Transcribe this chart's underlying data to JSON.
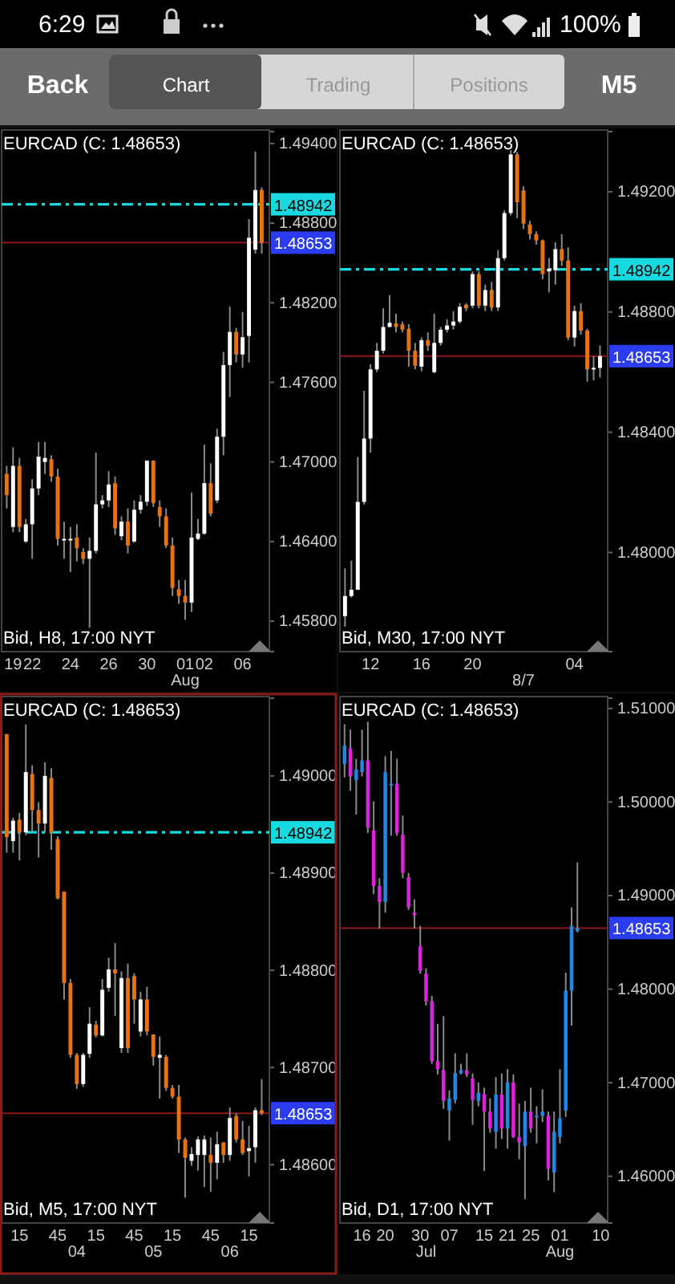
{
  "chart_data": [
    {
      "type": "other",
      "annotations": [
        "6:29",
        "100%",
        "Back",
        "Chart",
        "Trading",
        "Positions",
        "M5"
      ]
    },
    {
      "type": "candlestick",
      "title": "EURCAD (C: 1.48653)",
      "annotations": [
        "Bid, H8, 17:00 NYT"
      ],
      "categories": [
        null,
        "19",
        null,
        null,
        "22",
        null,
        null,
        null,
        null,
        null,
        "24",
        null,
        null,
        null,
        null,
        null,
        "26",
        null,
        null,
        null,
        null,
        null,
        "30",
        null,
        null,
        null,
        null,
        null,
        "01\nAug",
        null,
        null,
        "02",
        null,
        null,
        null,
        null,
        null,
        "06",
        null,
        null,
        null
      ],
      "ohlc": [
        [
          1.4691,
          1.4697,
          1.4665,
          1.4675
        ],
        [
          1.4651,
          1.4711,
          1.4647,
          1.4697
        ],
        [
          1.4697,
          1.4703,
          1.4647,
          1.4651
        ],
        [
          1.464,
          1.4657,
          1.4639,
          1.4653
        ],
        [
          1.4653,
          1.4687,
          1.4627,
          1.468
        ],
        [
          1.468,
          1.4715,
          1.4675,
          1.4704
        ],
        [
          1.47,
          1.4715,
          1.4691,
          1.4703
        ],
        [
          1.4702,
          1.4705,
          1.4685,
          1.4689
        ],
        [
          1.4689,
          1.4695,
          1.4637,
          1.4642
        ],
        [
          1.4641,
          1.4655,
          1.4627,
          1.4642
        ],
        [
          1.4642,
          1.4651,
          1.4617,
          1.4641
        ],
        [
          1.4643,
          1.4653,
          1.4625,
          1.4635
        ],
        [
          1.4632,
          1.4635,
          1.4623,
          1.4627
        ],
        [
          1.4627,
          1.4643,
          1.4575,
          1.4633
        ],
        [
          1.4633,
          1.4707,
          1.4631,
          1.4668
        ],
        [
          1.4668,
          1.4675,
          1.4665,
          1.4671
        ],
        [
          1.4671,
          1.4693,
          1.4666,
          1.4683
        ],
        [
          1.4684,
          1.4689,
          1.4645,
          1.465
        ],
        [
          1.4644,
          1.4659,
          1.4641,
          1.4655
        ],
        [
          1.4655,
          1.4665,
          1.4631,
          1.4637
        ],
        [
          1.464,
          1.4671,
          1.4639,
          1.4664
        ],
        [
          1.4664,
          1.4675,
          1.4661,
          1.467
        ],
        [
          1.467,
          1.4701,
          1.4667,
          1.4701
        ],
        [
          1.4701,
          1.4701,
          1.4666,
          1.4669
        ],
        [
          1.4666,
          1.4671,
          1.4651,
          1.4659
        ],
        [
          1.4659,
          1.4665,
          1.4635,
          1.4637
        ],
        [
          1.4637,
          1.4643,
          1.4599,
          1.4605
        ],
        [
          1.4604,
          1.4611,
          1.4593,
          1.4599
        ],
        [
          1.4599,
          1.4611,
          1.4581,
          1.4594
        ],
        [
          1.4594,
          1.4677,
          1.4587,
          1.4643
        ],
        [
          1.4642,
          1.4657,
          1.4641,
          1.4646
        ],
        [
          1.4646,
          1.4713,
          1.4645,
          1.4684
        ],
        [
          1.4684,
          1.4699,
          1.4659,
          1.4661
        ],
        [
          1.4671,
          1.4725,
          1.4669,
          1.4719
        ],
        [
          1.4719,
          1.4783,
          1.4705,
          1.4773
        ],
        [
          1.4773,
          1.4817,
          1.4749,
          1.4798
        ],
        [
          1.4798,
          1.4801,
          1.4775,
          1.4781
        ],
        [
          1.4781,
          1.4813,
          1.4771,
          1.4794
        ],
        [
          1.4795,
          1.4883,
          1.4775,
          1.4869
        ],
        [
          1.486,
          1.4934,
          1.4857,
          1.4905
        ],
        [
          1.4905,
          1.4907,
          1.4857,
          1.48653
        ]
      ],
      "colors": [
        "#e8720c",
        "#ffffff",
        "#e8720c",
        "#ffffff",
        "#ffffff",
        "#ffffff",
        "#ffffff",
        "#e8720c",
        "#e8720c",
        "#ffffff",
        "#ffffff",
        "#e8720c",
        "#e8720c",
        "#ffffff",
        "#ffffff",
        "#ffffff",
        "#ffffff",
        "#e8720c",
        "#ffffff",
        "#e8720c",
        "#ffffff",
        "#ffffff",
        "#ffffff",
        "#e8720c",
        "#e8720c",
        "#e8720c",
        "#e8720c",
        "#e8720c",
        "#e8720c",
        "#ffffff",
        "#ffffff",
        "#ffffff",
        "#e8720c",
        "#ffffff",
        "#ffffff",
        "#ffffff",
        "#e8720c",
        "#ffffff",
        "#ffffff",
        "#ffffff",
        "#e8720c"
      ],
      "ylim": [
        1.4557,
        1.4949
      ],
      "yticks": [
        {
          "value": 1.494,
          "label": "1.49400"
        },
        {
          "value": 1.488,
          "label": "1.48800"
        },
        {
          "value": 1.482,
          "label": "1.48200"
        },
        {
          "value": 1.476,
          "label": "1.47600"
        },
        {
          "value": 1.47,
          "label": "1.47000"
        },
        {
          "value": 1.464,
          "label": "1.46400"
        },
        {
          "value": 1.458,
          "label": "1.45800"
        }
      ],
      "ref_lines": [
        {
          "axis": "y",
          "value": 1.48653,
          "label": "1.48653",
          "color": "#8b1a1a",
          "line_style": "solid"
        },
        {
          "axis": "y",
          "value": 1.48942,
          "label": "1.48942",
          "color": "#19d9e0",
          "line_style": "dashed"
        }
      ]
    },
    {
      "type": "candlestick",
      "title": "EURCAD (C: 1.48653)",
      "annotations": [
        "Bid, M30, 17:00 NYT"
      ],
      "categories": [
        null,
        null,
        null,
        null,
        "12",
        null,
        null,
        null,
        null,
        null,
        null,
        null,
        "16",
        null,
        null,
        null,
        null,
        null,
        null,
        null,
        "20",
        null,
        null,
        null,
        null,
        null,
        null,
        null,
        "\n8/7",
        null,
        null,
        null,
        null,
        null,
        null,
        null,
        "04",
        null,
        null,
        null,
        null
      ],
      "ohlc": [
        [
          1.47788,
          1.47947,
          1.47753,
          1.47855
        ],
        [
          1.47855,
          1.47973,
          1.4785,
          1.47876
        ],
        [
          1.47876,
          1.48318,
          1.47876,
          1.48168
        ],
        [
          1.48168,
          1.48538,
          1.48159,
          1.48379
        ],
        [
          1.48379,
          1.48626,
          1.48332,
          1.48609
        ],
        [
          1.48609,
          1.48697,
          1.486,
          1.48671
        ],
        [
          1.48671,
          1.48812,
          1.48662,
          1.4875
        ],
        [
          1.4875,
          1.48856,
          1.4875,
          1.48764
        ],
        [
          1.48762,
          1.48794,
          1.48732,
          1.4875
        ],
        [
          1.48759,
          1.48768,
          1.48732,
          1.48741
        ],
        [
          1.48744,
          1.48759,
          1.48618,
          1.48671
        ],
        [
          1.48671,
          1.48697,
          1.48609,
          1.48621
        ],
        [
          1.48618,
          1.48715,
          1.48603,
          1.48706
        ],
        [
          1.48706,
          1.48732,
          1.48671,
          1.48688
        ],
        [
          1.486,
          1.48794,
          1.48596,
          1.48697
        ],
        [
          1.48697,
          1.4875,
          1.48688,
          1.48741
        ],
        [
          1.48741,
          1.48776,
          1.48732,
          1.48755
        ],
        [
          1.48755,
          1.48803,
          1.48741,
          1.48768
        ],
        [
          1.48768,
          1.48829,
          1.48762,
          1.48817
        ],
        [
          1.48824,
          1.48829,
          1.48803,
          1.48812
        ],
        [
          1.48821,
          1.48935,
          1.48812,
          1.48926
        ],
        [
          1.48926,
          1.48935,
          1.48812,
          1.48821
        ],
        [
          1.48821,
          1.48891,
          1.48803,
          1.48873
        ],
        [
          1.48873,
          1.489,
          1.48803,
          1.48815
        ],
        [
          1.48815,
          1.49006,
          1.48803,
          1.48979
        ],
        [
          1.48979,
          1.49138,
          1.48971,
          1.49129
        ],
        [
          1.49129,
          1.49338,
          1.49121,
          1.49324
        ],
        [
          1.49324,
          1.49332,
          1.49112,
          1.49165
        ],
        [
          1.49204,
          1.49218,
          1.49076,
          1.49094
        ],
        [
          1.49091,
          1.49103,
          1.49041,
          1.49059
        ],
        [
          1.49059,
          1.49068,
          1.49024,
          1.49038
        ],
        [
          1.49038,
          1.49041,
          1.48909,
          1.48926
        ],
        [
          1.48935,
          1.48979,
          1.48865,
          1.48944
        ],
        [
          1.48939,
          1.49032,
          1.48891,
          1.49009
        ],
        [
          1.49009,
          1.49059,
          1.48953,
          1.48971
        ],
        [
          1.48971,
          1.49015,
          1.48706,
          1.48715
        ],
        [
          1.48715,
          1.48821,
          1.48685,
          1.48803
        ],
        [
          1.48803,
          1.48829,
          1.48724,
          1.48738
        ],
        [
          1.48738,
          1.48744,
          1.48568,
          1.48609
        ],
        [
          1.48609,
          1.48653,
          1.48573,
          1.48614
        ],
        [
          1.48614,
          1.48688,
          1.48582,
          1.48653
        ]
      ],
      "colors": [
        "#ffffff",
        "#ffffff",
        "#ffffff",
        "#ffffff",
        "#ffffff",
        "#ffffff",
        "#ffffff",
        "#ffffff",
        "#e8720c",
        "#e8720c",
        "#e8720c",
        "#e8720c",
        "#ffffff",
        "#e8720c",
        "#ffffff",
        "#ffffff",
        "#ffffff",
        "#ffffff",
        "#ffffff",
        "#e8720c",
        "#ffffff",
        "#e8720c",
        "#ffffff",
        "#e8720c",
        "#ffffff",
        "#ffffff",
        "#ffffff",
        "#e8720c",
        "#e8720c",
        "#e8720c",
        "#e8720c",
        "#e8720c",
        "#ffffff",
        "#ffffff",
        "#e8720c",
        "#e8720c",
        "#ffffff",
        "#e8720c",
        "#e8720c",
        "#ffffff",
        "#ffffff"
      ],
      "ylim": [
        1.4767,
        1.494
      ],
      "yticks": [
        {
          "value": 1.492,
          "label": "1.49200"
        },
        {
          "value": 1.488,
          "label": "1.48800"
        },
        {
          "value": 1.484,
          "label": "1.48400"
        },
        {
          "value": 1.48,
          "label": "1.48000"
        }
      ],
      "ref_lines": [
        {
          "axis": "y",
          "value": 1.48653,
          "label": "1.48653",
          "color": "#8b1a1a",
          "line_style": "solid"
        },
        {
          "axis": "y",
          "value": 1.48942,
          "label": "1.48942",
          "color": "#19d9e0",
          "line_style": "dashed"
        }
      ]
    },
    {
      "type": "candlestick",
      "title": "EURCAD (C: 1.48653)",
      "annotations": [
        "Bid, M5, 17:00 NYT"
      ],
      "categories": [
        null,
        null,
        "15",
        null,
        null,
        null,
        null,
        null,
        "45",
        null,
        null,
        "\n04",
        null,
        null,
        "15",
        null,
        null,
        null,
        null,
        null,
        "45",
        null,
        null,
        "\n05",
        null,
        null,
        "15",
        null,
        null,
        null,
        null,
        null,
        "45",
        null,
        null,
        "\n06",
        null,
        null,
        "15",
        null,
        null
      ],
      "ohlc": [
        [
          1.49043,
          1.49043,
          1.48921,
          1.48937
        ],
        [
          1.48933,
          1.48957,
          1.48921,
          1.48954
        ],
        [
          1.48955,
          1.48962,
          1.48913,
          1.48942
        ],
        [
          1.48942,
          1.49053,
          1.48939,
          1.49004
        ],
        [
          1.49002,
          1.49011,
          1.48943,
          1.48965
        ],
        [
          1.48965,
          1.48973,
          1.48916,
          1.48951
        ],
        [
          1.48951,
          1.49014,
          1.48942,
          1.49
        ],
        [
          1.48998,
          1.49008,
          1.48924,
          1.48942
        ],
        [
          1.48935,
          1.48938,
          1.48873,
          1.48874
        ],
        [
          1.48881,
          1.48881,
          1.4877,
          1.48787
        ],
        [
          1.48787,
          1.48791,
          1.4871,
          1.48713
        ],
        [
          1.48713,
          1.48715,
          1.48678,
          1.48683
        ],
        [
          1.48683,
          1.48715,
          1.4868,
          1.48713
        ],
        [
          1.48714,
          1.48762,
          1.4871,
          1.48745
        ],
        [
          1.48744,
          1.48748,
          1.48731,
          1.48733
        ],
        [
          1.48733,
          1.48791,
          1.48732,
          1.4878
        ],
        [
          1.48782,
          1.48813,
          1.48778,
          1.48801
        ],
        [
          1.48801,
          1.48828,
          1.48753,
          1.48797
        ],
        [
          1.4872,
          1.48799,
          1.48715,
          1.48792
        ],
        [
          1.48792,
          1.48807,
          1.48715,
          1.4872
        ],
        [
          1.48794,
          1.48797,
          1.48745,
          1.4877
        ],
        [
          1.48737,
          1.48778,
          1.48732,
          1.4877
        ],
        [
          1.4877,
          1.48783,
          1.48733,
          1.48737
        ],
        [
          1.48734,
          1.48734,
          1.48702,
          1.48711
        ],
        [
          1.4871,
          1.48732,
          1.48668,
          1.48713
        ],
        [
          1.48711,
          1.48713,
          1.48676,
          1.48679
        ],
        [
          1.48679,
          1.48682,
          1.48668,
          1.4867
        ],
        [
          1.4867,
          1.48682,
          1.48612,
          1.48626
        ],
        [
          1.48626,
          1.48628,
          1.48566,
          1.48607
        ],
        [
          1.48604,
          1.48618,
          1.48599,
          1.48611
        ],
        [
          1.4861,
          1.48629,
          1.48594,
          1.48626
        ],
        [
          1.4861,
          1.4863,
          1.48577,
          1.48626
        ],
        [
          1.4861,
          1.48628,
          1.48572,
          1.48602
        ],
        [
          1.48602,
          1.48634,
          1.48585,
          1.48621
        ],
        [
          1.48623,
          1.48623,
          1.48602,
          1.4861
        ],
        [
          1.4861,
          1.48659,
          1.48604,
          1.48648
        ],
        [
          1.4865,
          1.48653,
          1.48623,
          1.48626
        ],
        [
          1.48626,
          1.48645,
          1.4861,
          1.48612
        ],
        [
          1.48614,
          1.4864,
          1.48588,
          1.48617
        ],
        [
          1.48618,
          1.48659,
          1.48602,
          1.48656
        ],
        [
          1.48656,
          1.48688,
          1.48651,
          1.48653
        ]
      ],
      "colors": [
        "#e8720c",
        "#ffffff",
        "#e8720c",
        "#ffffff",
        "#e8720c",
        "#e8720c",
        "#ffffff",
        "#e8720c",
        "#e8720c",
        "#e8720c",
        "#e8720c",
        "#e8720c",
        "#ffffff",
        "#ffffff",
        "#e8720c",
        "#ffffff",
        "#ffffff",
        "#e8720c",
        "#ffffff",
        "#e8720c",
        "#e8720c",
        "#ffffff",
        "#e8720c",
        "#e8720c",
        "#ffffff",
        "#e8720c",
        "#e8720c",
        "#e8720c",
        "#e8720c",
        "#ffffff",
        "#ffffff",
        "#ffffff",
        "#e8720c",
        "#ffffff",
        "#e8720c",
        "#ffffff",
        "#e8720c",
        "#e8720c",
        "#ffffff",
        "#ffffff",
        "#e8720c"
      ],
      "ylim": [
        1.4854,
        1.4908
      ],
      "yticks": [
        {
          "value": 1.49,
          "label": "1.49000"
        },
        {
          "value": 1.489,
          "label": "1.48900"
        },
        {
          "value": 1.488,
          "label": "1.48800"
        },
        {
          "value": 1.487,
          "label": "1.48700"
        },
        {
          "value": 1.486,
          "label": "1.48600"
        }
      ],
      "ref_lines": [
        {
          "axis": "y",
          "value": 1.48653,
          "label": "1.48653",
          "color": "#8b1a1a",
          "line_style": "solid"
        },
        {
          "axis": "y",
          "value": 1.48942,
          "label": "1.48942",
          "color": "#19d9e0",
          "line_style": "dashed"
        }
      ]
    },
    {
      "type": "candlestick",
      "title": "EURCAD (C: 1.48653)",
      "annotations": [
        "Bid, D1, 17:00 NYT"
      ],
      "categories": [
        null,
        null,
        null,
        "16",
        null,
        null,
        null,
        "20",
        null,
        null,
        null,
        null,
        null,
        "30",
        "\nJul",
        null,
        null,
        null,
        "07",
        null,
        null,
        null,
        null,
        null,
        "15",
        null,
        null,
        null,
        "21",
        null,
        null,
        null,
        "25",
        null,
        null,
        null,
        null,
        "01\nAug",
        null,
        null,
        null,
        null,
        null,
        null,
        "10"
      ],
      "ohlc": [
        [
          1.50405,
          1.5083,
          1.50263,
          1.50603
        ],
        [
          1.50575,
          1.50773,
          1.50121,
          1.50274
        ],
        [
          1.50235,
          1.50462,
          1.49866,
          1.50348
        ],
        [
          1.5032,
          1.50773,
          1.50274,
          1.50445
        ],
        [
          1.50445,
          1.50858,
          1.49668,
          1.49724
        ],
        [
          1.49696,
          1.50008,
          1.49016,
          1.49101
        ],
        [
          1.49101,
          1.49186,
          1.48647,
          1.48931
        ],
        [
          1.48931,
          1.5049,
          1.48817,
          1.5032
        ],
        [
          1.50178,
          1.50547,
          1.4964,
          1.50195
        ],
        [
          1.50195,
          1.50462,
          1.4964,
          1.49668
        ],
        [
          1.49651,
          1.49855,
          1.49186,
          1.49243
        ],
        [
          1.49197,
          1.49243,
          1.48846,
          1.48874
        ],
        [
          1.48817,
          1.48959,
          1.48647,
          1.48789
        ],
        [
          1.4846,
          1.48676,
          1.48165,
          1.48194
        ],
        [
          1.48165,
          1.48222,
          1.47825,
          1.47871
        ],
        [
          1.47871,
          1.47927,
          1.47202,
          1.4723
        ],
        [
          1.4723,
          1.47627,
          1.47088,
          1.47145
        ],
        [
          1.47134,
          1.47712,
          1.4672,
          1.46805
        ],
        [
          1.46703,
          1.46918,
          1.4638,
          1.46833
        ],
        [
          1.46816,
          1.47315,
          1.46777,
          1.471
        ],
        [
          1.471,
          1.47202,
          1.47088,
          1.47134
        ],
        [
          1.47134,
          1.47315,
          1.4706,
          1.47088
        ],
        [
          1.47043,
          1.471,
          1.4655,
          1.46816
        ],
        [
          1.46805,
          1.47003,
          1.46748,
          1.4689
        ],
        [
          1.46879,
          1.46947,
          1.46057,
          1.46692
        ],
        [
          1.46692,
          1.46833,
          1.46465,
          1.4651
        ],
        [
          1.46476,
          1.4706,
          1.46295,
          1.46873
        ],
        [
          1.46873,
          1.471,
          1.46397,
          1.4651
        ],
        [
          1.4651,
          1.47145,
          1.46295,
          1.47003
        ],
        [
          1.47003,
          1.47088,
          1.46408,
          1.46419
        ],
        [
          1.46419,
          1.46777,
          1.46181,
          1.46363
        ],
        [
          1.46323,
          1.46805,
          1.45756,
          1.46692
        ],
        [
          1.46692,
          1.46947,
          1.46465,
          1.4651
        ],
        [
          1.46635,
          1.46748,
          1.46351,
          1.46646
        ],
        [
          1.46646,
          1.4693,
          1.46578,
          1.46692
        ],
        [
          1.46646,
          1.46692,
          1.45955,
          1.46079
        ],
        [
          1.4604,
          1.46692,
          1.4583,
          1.46476
        ],
        [
          1.46419,
          1.47145,
          1.46351,
          1.46618
        ],
        [
          1.46703,
          1.48177,
          1.46635,
          1.47984
        ],
        [
          1.47984,
          1.48874,
          1.4761,
          1.48676
        ],
        [
          1.48619,
          1.49356,
          1.48608,
          1.48653
        ],
        null,
        null,
        null,
        null
      ],
      "colors": [
        "#1e88e5",
        "#e020e0",
        "#1e88e5",
        "#1e88e5",
        "#e020e0",
        "#e020e0",
        "#e020e0",
        "#1e88e5",
        "#1e88e5",
        "#e020e0",
        "#e020e0",
        "#e020e0",
        "#e020e0",
        "#e020e0",
        "#e020e0",
        "#e020e0",
        "#e020e0",
        "#e020e0",
        "#1e88e5",
        "#1e88e5",
        "#1e88e5",
        "#e020e0",
        "#e020e0",
        "#1e88e5",
        "#e020e0",
        "#e020e0",
        "#1e88e5",
        "#e020e0",
        "#1e88e5",
        "#e020e0",
        "#e020e0",
        "#1e88e5",
        "#e020e0",
        "#1e88e5",
        "#1e88e5",
        "#e020e0",
        "#1e88e5",
        "#1e88e5",
        "#1e88e5",
        "#1e88e5",
        "#1e88e5",
        null,
        null,
        null,
        null
      ],
      "ylim": [
        1.455,
        1.5111
      ],
      "yticks": [
        {
          "value": 1.51,
          "label": "1.51000"
        },
        {
          "value": 1.5,
          "label": "1.50000"
        },
        {
          "value": 1.49,
          "label": "1.49000"
        },
        {
          "value": 1.48,
          "label": "1.48000"
        },
        {
          "value": 1.47,
          "label": "1.47000"
        },
        {
          "value": 1.46,
          "label": "1.46000"
        }
      ],
      "ref_lines": [
        {
          "axis": "y",
          "value": 1.48653,
          "label": "1.48653",
          "color": "#8b1a1a",
          "line_style": "solid"
        }
      ]
    }
  ]
}
